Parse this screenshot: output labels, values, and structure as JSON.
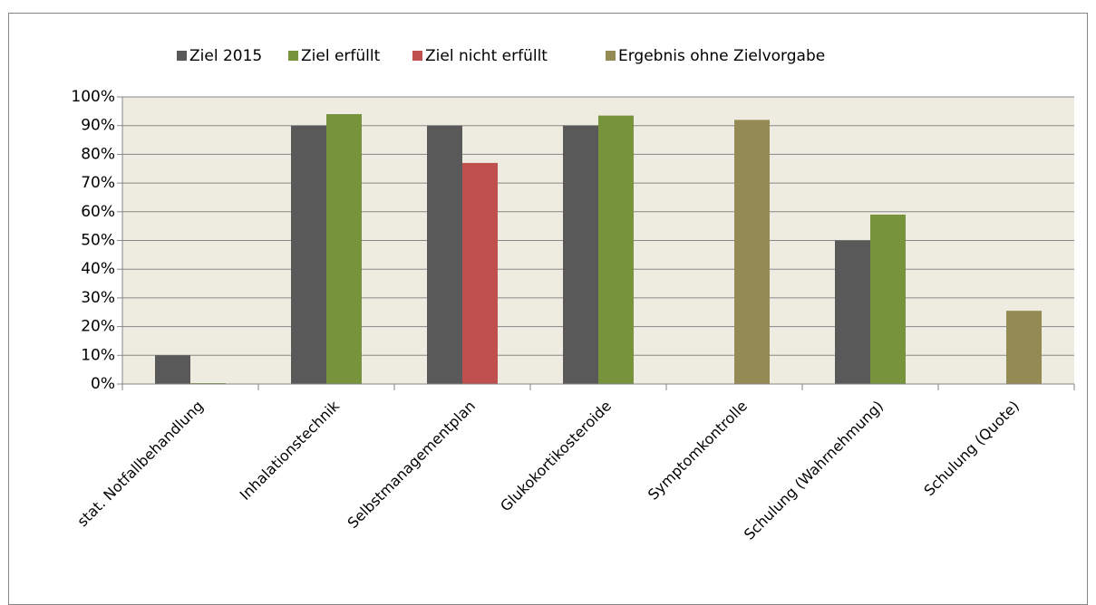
{
  "chart_data": {
    "type": "bar",
    "categories": [
      "stat. Notfallbehandlung",
      "Inhalationstechnik",
      "Selbstmanagementplan",
      "Glukokortikosteroide",
      "Symptomkontrolle",
      "Schulung (Wahrnehmung)",
      "Schulung (Quote)"
    ],
    "series": [
      {
        "name": "Ziel 2015",
        "color": "#595959",
        "values": [
          10,
          90,
          90,
          90,
          null,
          50,
          null
        ]
      },
      {
        "name": "Ziel erfüllt",
        "color": "#77933c",
        "values": [
          0.3,
          94,
          null,
          93.5,
          null,
          59,
          null
        ]
      },
      {
        "name": "Ziel nicht erfüllt",
        "color": "#c0504d",
        "values": [
          null,
          null,
          77,
          null,
          null,
          null,
          null
        ]
      },
      {
        "name": "Ergebnis ohne Zielvorgabe",
        "color": "#948a54",
        "values": [
          null,
          null,
          null,
          null,
          92,
          null,
          25.5
        ]
      }
    ],
    "ylim": [
      0,
      100
    ],
    "yticks": [
      {
        "value": 0,
        "label": "0%"
      },
      {
        "value": 10,
        "label": "10%"
      },
      {
        "value": 20,
        "label": "20%"
      },
      {
        "value": 30,
        "label": "30%"
      },
      {
        "value": 40,
        "label": "40%"
      },
      {
        "value": 50,
        "label": "50%"
      },
      {
        "value": 60,
        "label": "60%"
      },
      {
        "value": 70,
        "label": "70%"
      },
      {
        "value": 80,
        "label": "80%"
      },
      {
        "value": 90,
        "label": "90%"
      },
      {
        "value": 100,
        "label": "100%"
      }
    ],
    "grid": true,
    "legend": "top"
  }
}
